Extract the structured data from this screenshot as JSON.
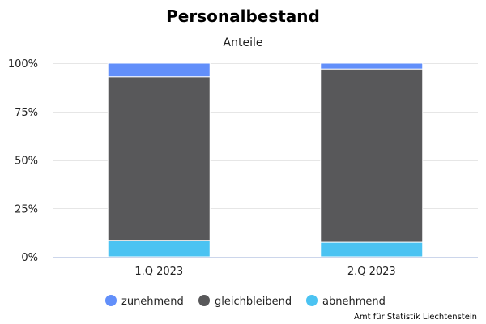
{
  "chart_data": {
    "type": "bar",
    "stacked": true,
    "title": "Personalbestand",
    "subtitle": "Anteile",
    "categories": [
      "1.Q 2023",
      "2.Q 2023"
    ],
    "series": [
      {
        "name": "abnehmend",
        "color": "#4bc3f2",
        "values": [
          8.5,
          7.5
        ]
      },
      {
        "name": "gleichbleibend",
        "color": "#58585a",
        "values": [
          84.5,
          89.5
        ]
      },
      {
        "name": "zunehmend",
        "color": "#628ffa",
        "values": [
          7.0,
          3.0
        ]
      }
    ],
    "legend_order": [
      "zunehmend",
      "gleichbleibend",
      "abnehmend"
    ],
    "ylim": [
      0,
      100
    ],
    "yticks": [
      "0%",
      "25%",
      "50%",
      "75%",
      "100%"
    ],
    "ytick_values": [
      0,
      25,
      50,
      75,
      100
    ],
    "grid": true,
    "legend_position": "bottom-center",
    "credit": "Amt für Statistik Liechtenstein"
  }
}
